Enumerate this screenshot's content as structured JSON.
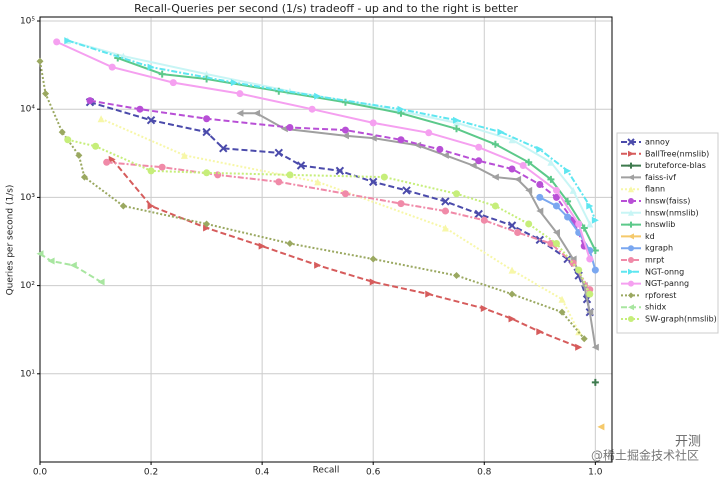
{
  "chart_data": {
    "type": "line",
    "title": "Recall-Queries per second (1/s) tradeoff - up and to the right is better",
    "x_label": "Recall",
    "y_label": "Queries per second (1/s)",
    "xlim": [
      0,
      1.03
    ],
    "ylim": [
      1,
      111000
    ],
    "y_scale": "log",
    "grid": true,
    "legend": "right",
    "xticks": [
      {
        "value": 0,
        "label": "0.0"
      },
      0.2,
      0.4,
      0.6,
      0.8,
      {
        "value": 1,
        "label": "1.0"
      }
    ],
    "yticks": [
      {
        "value": 10,
        "label": "10¹"
      },
      {
        "value": 100,
        "label": "10²"
      },
      {
        "value": 1000,
        "label": "10³"
      },
      {
        "value": 10000,
        "label": "10⁴"
      },
      {
        "value": 100000,
        "label": "10⁵"
      }
    ],
    "watermark": [
      "开测",
      "@稀土掘金技术社区"
    ],
    "series": [
      {
        "name": "annoy",
        "color": "#4b4bab",
        "linestyle": "dashed",
        "marker": "x",
        "x": [
          0.09,
          0.2,
          0.3,
          0.33,
          0.43,
          0.47,
          0.54,
          0.6,
          0.66,
          0.73,
          0.79,
          0.85,
          0.9,
          0.95,
          0.97,
          0.985,
          0.99
        ],
        "values": [
          12000,
          7500,
          5500,
          3600,
          3200,
          2300,
          2000,
          1500,
          1200,
          900,
          650,
          480,
          330,
          200,
          130,
          70,
          50
        ]
      },
      {
        "name": "BallTree(nmslib)",
        "color": "#d65c5c",
        "linestyle": "dashed",
        "marker": "tri_right",
        "x": [
          0.13,
          0.2,
          0.3,
          0.4,
          0.5,
          0.6,
          0.7,
          0.8,
          0.85,
          0.9,
          0.97
        ],
        "values": [
          2700,
          800,
          450,
          280,
          170,
          110,
          80,
          55,
          42,
          30,
          20
        ]
      },
      {
        "name": "bruteforce-blas",
        "color": "#3d7a4d",
        "linestyle": "solid",
        "marker": "plus",
        "x": [
          1.0
        ],
        "values": [
          8
        ]
      },
      {
        "name": "faiss-ivf",
        "color": "#a0a0a0",
        "linestyle": "solid",
        "marker": "tri_left",
        "x": [
          0.36,
          0.39,
          0.44,
          0.55,
          0.6,
          0.68,
          0.73,
          0.78,
          0.82,
          0.86,
          0.88,
          0.9,
          0.93,
          0.96,
          0.98,
          0.99,
          1.0
        ],
        "values": [
          9000,
          9000,
          6000,
          5000,
          4700,
          3900,
          3000,
          2300,
          1700,
          1600,
          1200,
          700,
          400,
          200,
          100,
          50,
          20
        ]
      },
      {
        "name": "flann",
        "color": "#f7f7a8",
        "linestyle": "dotted",
        "marker": "tri_up",
        "x": [
          0.11,
          0.26,
          0.5,
          0.73,
          0.85,
          0.94,
          0.97
        ],
        "values": [
          7800,
          3000,
          1500,
          450,
          150,
          70,
          30
        ]
      },
      {
        "name": "hnsw(faiss)",
        "color": "#b84fd6",
        "linestyle": "dashed",
        "marker": "circle",
        "x": [
          0.09,
          0.18,
          0.3,
          0.45,
          0.55,
          0.65,
          0.72,
          0.79,
          0.85,
          0.9,
          0.93,
          0.96,
          0.98
        ],
        "values": [
          12500,
          10000,
          7800,
          6200,
          5800,
          4500,
          3500,
          2600,
          2100,
          1400,
          1000,
          550,
          280
        ]
      },
      {
        "name": "hnsw(nmslib)",
        "color": "#c8f5f5",
        "linestyle": "solid",
        "marker": "tri_up",
        "x": [
          0.05,
          0.15,
          0.3,
          0.45,
          0.6,
          0.75,
          0.85,
          0.92,
          0.96,
          0.99
        ],
        "values": [
          60000,
          40000,
          25000,
          16000,
          11000,
          7000,
          4500,
          2500,
          1200,
          500
        ]
      },
      {
        "name": "hnswlib",
        "color": "#5cc98a",
        "linestyle": "solid",
        "marker": "plus",
        "x": [
          0.14,
          0.22,
          0.3,
          0.43,
          0.55,
          0.65,
          0.75,
          0.82,
          0.88,
          0.92,
          0.95,
          0.98,
          1.0
        ],
        "values": [
          38000,
          25000,
          22000,
          16000,
          12000,
          9000,
          6000,
          4000,
          2500,
          1600,
          900,
          450,
          250
        ]
      },
      {
        "name": "kd",
        "color": "#f5c96b",
        "linestyle": "solid",
        "marker": "tri_left",
        "x": [
          1.01
        ],
        "values": [
          2.5
        ]
      },
      {
        "name": "kgraph",
        "color": "#7aa7f0",
        "linestyle": "solid",
        "marker": "circle",
        "x": [
          0.9,
          0.93,
          0.95,
          0.97,
          0.99,
          1.0
        ],
        "values": [
          1000,
          800,
          600,
          400,
          250,
          150
        ]
      },
      {
        "name": "mrpt",
        "color": "#f08aa8",
        "linestyle": "dashdot",
        "marker": "circle",
        "x": [
          0.12,
          0.22,
          0.32,
          0.43,
          0.55,
          0.65,
          0.73,
          0.8,
          0.86,
          0.92,
          0.96,
          0.99
        ],
        "values": [
          2500,
          2200,
          1800,
          1500,
          1100,
          850,
          700,
          550,
          400,
          300,
          180,
          90
        ]
      },
      {
        "name": "NGT-onng",
        "color": "#5ee6f0",
        "linestyle": "dashdot",
        "marker": "tri_right",
        "x": [
          0.05,
          0.2,
          0.35,
          0.5,
          0.65,
          0.75,
          0.83,
          0.9,
          0.95,
          0.99,
          1.0
        ],
        "values": [
          60000,
          30000,
          20000,
          14000,
          10000,
          7500,
          5500,
          3500,
          2000,
          800,
          550
        ]
      },
      {
        "name": "NGT-panng",
        "color": "#f5a0f0",
        "linestyle": "solid",
        "marker": "circle",
        "x": [
          0.03,
          0.13,
          0.24,
          0.36,
          0.49,
          0.6,
          0.7,
          0.79,
          0.87,
          0.93,
          0.97,
          0.99
        ],
        "values": [
          58000,
          30000,
          20000,
          15000,
          10000,
          7000,
          5400,
          3700,
          2300,
          1200,
          500,
          200
        ]
      },
      {
        "name": "rpforest",
        "color": "#9aa860",
        "linestyle": "dotted",
        "marker": "diamond",
        "x": [
          0.0,
          0.01,
          0.04,
          0.07,
          0.08,
          0.15,
          0.3,
          0.45,
          0.6,
          0.75,
          0.85,
          0.94,
          0.98
        ],
        "values": [
          35000,
          15000,
          5500,
          3000,
          1700,
          800,
          500,
          300,
          200,
          130,
          80,
          50,
          25
        ]
      },
      {
        "name": "shidx",
        "color": "#a8e6a0",
        "linestyle": "dashed",
        "marker": "tri_left",
        "x": [
          0.0,
          0.02,
          0.06,
          0.11
        ],
        "values": [
          230,
          190,
          170,
          110
        ]
      },
      {
        "name": "SW-graph(nmslib)",
        "color": "#c6ee7a",
        "linestyle": "dotted",
        "marker": "circle",
        "x": [
          0.05,
          0.1,
          0.2,
          0.3,
          0.45,
          0.62,
          0.75,
          0.82,
          0.88,
          0.93,
          0.97,
          0.99
        ],
        "values": [
          4500,
          3800,
          2000,
          1900,
          1800,
          1700,
          1100,
          800,
          500,
          300,
          150,
          80
        ]
      }
    ]
  }
}
